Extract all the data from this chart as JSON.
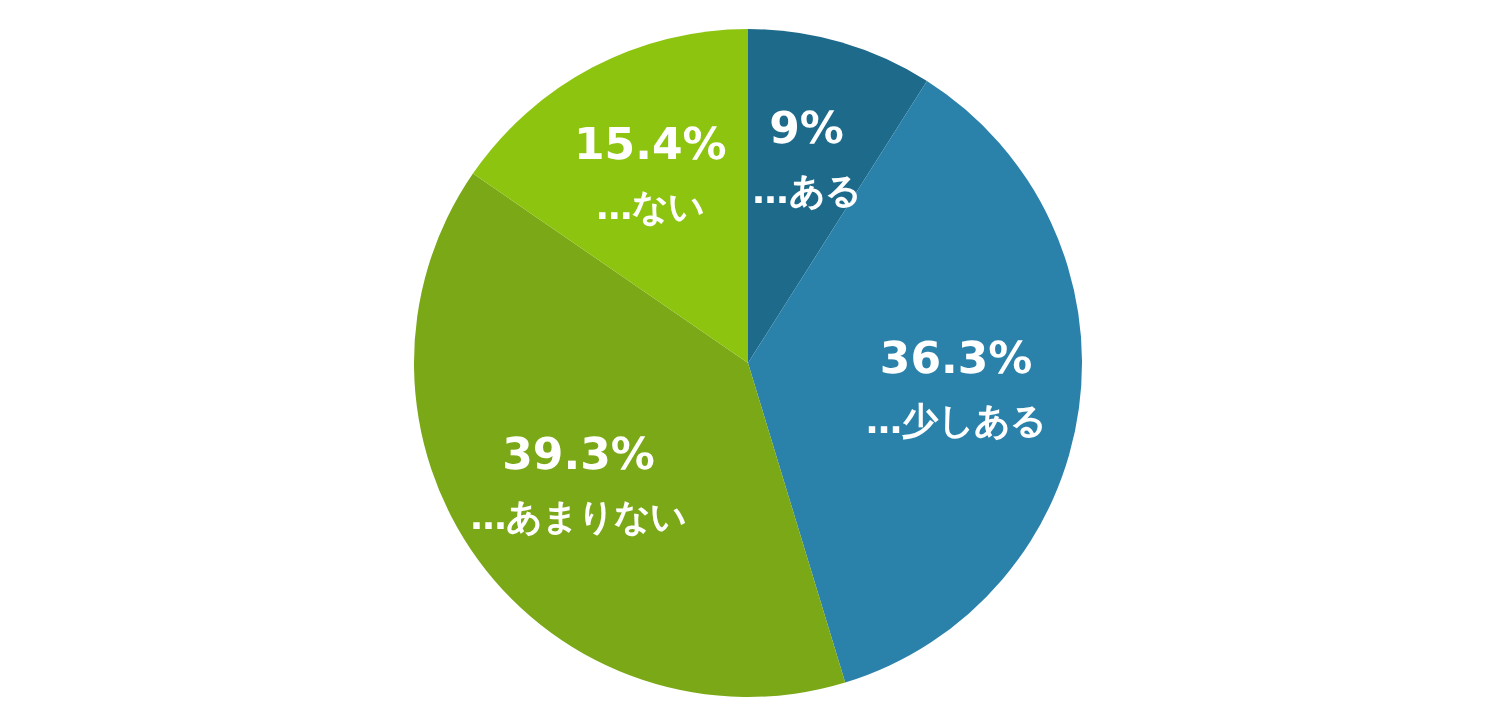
{
  "chart_data": {
    "type": "pie",
    "categories": [
      "…ある",
      "…少しある",
      "…あまりない",
      "…ない"
    ],
    "values": [
      9,
      36.3,
      39.3,
      15.4
    ],
    "colors": [
      "#1d6a8b",
      "#2a82ab",
      "#7aa816",
      "#8dc40f"
    ],
    "value_labels": [
      "9%",
      "36.3%",
      "39.3%",
      "15.4%"
    ]
  }
}
